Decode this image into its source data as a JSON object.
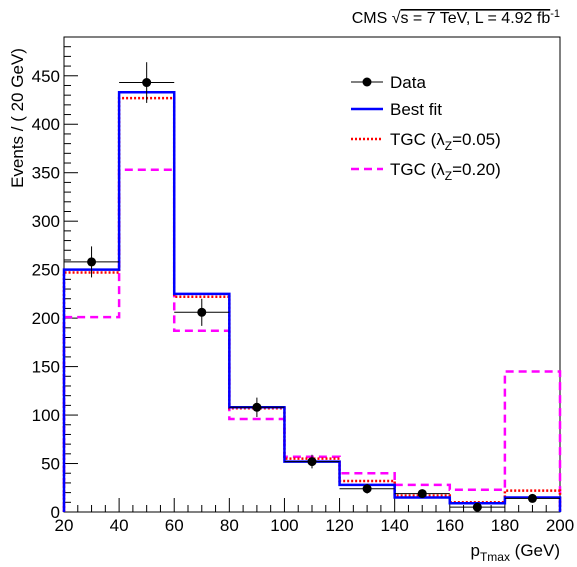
{
  "chart_data": {
    "type": "histogram",
    "header": {
      "prefix": "CMS ",
      "sqrt_symbol": "√",
      "energy": "s = 7 TeV, L = 4.92 fb",
      "lumi_exp": "-1"
    },
    "xlabel": {
      "main": "p",
      "sub": "Tmax",
      "unit": " (GeV)"
    },
    "ylabel": "Events / ( 20 GeV)",
    "xlim": [
      20,
      200
    ],
    "ylim": [
      0,
      490
    ],
    "xticks": [
      20,
      40,
      60,
      80,
      100,
      120,
      140,
      160,
      180,
      200
    ],
    "yticks": [
      0,
      50,
      100,
      150,
      200,
      250,
      300,
      350,
      400,
      450
    ],
    "bin_edges": [
      20,
      40,
      60,
      80,
      100,
      120,
      140,
      160,
      180,
      200
    ],
    "series": [
      {
        "name": "Best fit",
        "kind": "step",
        "color": "#0000ff",
        "style": "solid",
        "values": [
          250,
          433,
          225,
          108,
          52,
          28,
          15,
          9,
          15
        ]
      },
      {
        "name": "TGC",
        "kind": "step",
        "color": "#ff0000",
        "style": "dotted",
        "values": [
          247,
          427,
          222,
          107,
          55,
          32,
          17,
          10,
          22
        ]
      },
      {
        "name": "TGC",
        "kind": "step",
        "color": "#ff00ff",
        "style": "dashed",
        "values": [
          201,
          353,
          187,
          96,
          57,
          40,
          28,
          23,
          145
        ]
      }
    ],
    "data_points": {
      "name": "Data",
      "color": "#000000",
      "x": [
        30,
        50,
        70,
        90,
        110,
        130,
        150,
        170,
        190
      ],
      "y": [
        258,
        443,
        206,
        108,
        52,
        24,
        19,
        5,
        14
      ],
      "yerr": [
        16,
        21,
        14,
        10,
        7,
        5,
        4,
        2,
        4
      ]
    },
    "legend": {
      "position": "top-right",
      "entries": [
        {
          "label": "Data",
          "marker": "point"
        },
        {
          "label": "Best fit",
          "marker": "solid-blue"
        },
        {
          "label_pre": "TGC (λ",
          "label_sub": "Z",
          "label_post": "=0.05)",
          "marker": "dotted-red"
        },
        {
          "label_pre": "TGC (λ",
          "label_sub": "Z",
          "label_post": "=0.20)",
          "marker": "dashed-magenta"
        }
      ]
    }
  }
}
